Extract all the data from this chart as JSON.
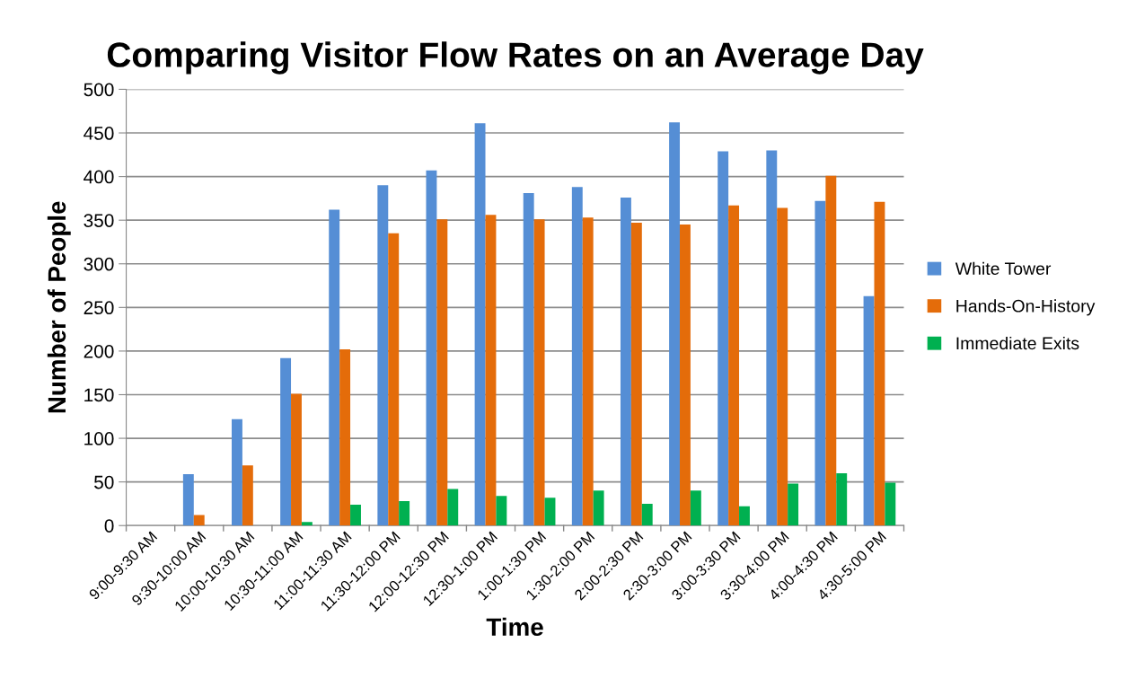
{
  "chart_data": {
    "type": "bar",
    "title": "Comparing Visitor Flow Rates on an Average Day",
    "xlabel": "Time",
    "ylabel": "Number of People",
    "categories": [
      "9:00-9:30 AM",
      "9:30-10:00 AM",
      "10:00-10:30 AM",
      "10:30-11:00 AM",
      "11:00-11:30 AM",
      "11:30-12:00 PM",
      "12:00-12:30 PM",
      "12:30-1:00 PM",
      "1:00-1:30 PM",
      "1:30-2:00 PM",
      "2:00-2:30 PM",
      "2:30-3:00 PM",
      "3:00-3:30 PM",
      "3:30-4:00 PM",
      "4:00-4:30 PM",
      "4:30-5:00 PM"
    ],
    "series": [
      {
        "name": "White Tower",
        "color": "#558ed5",
        "values": [
          0,
          59,
          122,
          192,
          362,
          390,
          407,
          461,
          381,
          388,
          376,
          462,
          429,
          430,
          372,
          263
        ]
      },
      {
        "name": "Hands-On-History",
        "color": "#e46c0a",
        "values": [
          0,
          12,
          69,
          151,
          202,
          335,
          351,
          356,
          351,
          353,
          347,
          345,
          367,
          364,
          401,
          371
        ]
      },
      {
        "name": "Immediate Exits",
        "color": "#00b050",
        "values": [
          0,
          0,
          0,
          4,
          24,
          28,
          42,
          34,
          32,
          40,
          25,
          40,
          22,
          48,
          60,
          49
        ]
      }
    ],
    "ylim": [
      0,
      500
    ],
    "yticks": [
      0,
      50,
      100,
      150,
      200,
      250,
      300,
      350,
      400,
      450,
      500
    ],
    "grid": "y",
    "legend": "right"
  }
}
